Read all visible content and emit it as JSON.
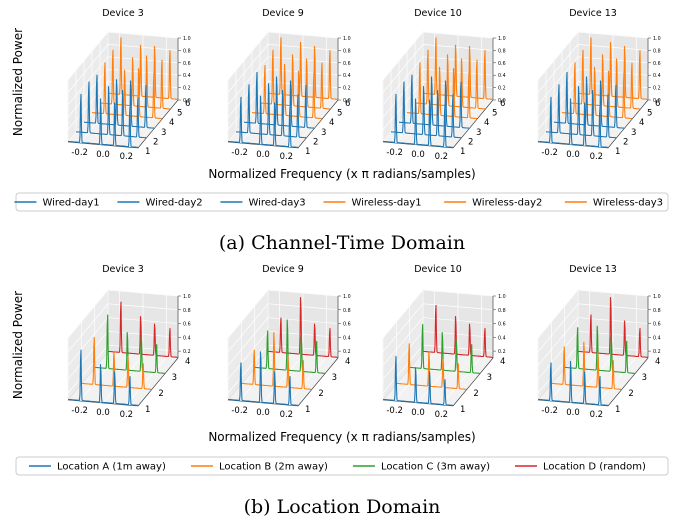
{
  "figure": {
    "panels": [
      {
        "caption": "(a) Channel-Time Domain",
        "ylabel": "Normalized Power",
        "xlabel": "Normalized Frequency (x π radians/samples)",
        "subplot_titles": [
          "Device 3",
          "Device 9",
          "Device 10",
          "Device 13"
        ],
        "x_ticks": [
          "-0.2",
          "0.0",
          "0.2"
        ],
        "depth_ticks": [
          "1",
          "2",
          "3",
          "4",
          "5",
          "6"
        ],
        "z_ticks": [
          "0.0",
          "0.2",
          "0.4",
          "0.6",
          "0.8",
          "1.0"
        ],
        "legend": [
          {
            "label": "Wired-day1",
            "color": "#1f77b4"
          },
          {
            "label": "Wired-day2",
            "color": "#1f77b4"
          },
          {
            "label": "Wired-day3",
            "color": "#1f77b4"
          },
          {
            "label": "Wireless-day1",
            "color": "#ff7f0e"
          },
          {
            "label": "Wireless-day2",
            "color": "#ff7f0e"
          },
          {
            "label": "Wireless-day3",
            "color": "#ff7f0e"
          }
        ]
      },
      {
        "caption": "(b) Location Domain",
        "ylabel": "Normalized Power",
        "xlabel": "Normalized Frequency (x π radians/samples)",
        "subplot_titles": [
          "Device 3",
          "Device 9",
          "Device 10",
          "Device 13"
        ],
        "x_ticks": [
          "-0.2",
          "0.0",
          "0.2"
        ],
        "depth_ticks": [
          "1",
          "2",
          "3",
          "4"
        ],
        "z_ticks": [
          "0.2",
          "0.4",
          "0.6",
          "0.8",
          "1.0"
        ],
        "legend": [
          {
            "label": "Location A (1m away)",
            "color": "#1f77b4"
          },
          {
            "label": "Location B (2m away)",
            "color": "#ff7f0e"
          },
          {
            "label": "Location C (3m away)",
            "color": "#2ca02c"
          },
          {
            "label": "Location D (random)",
            "color": "#d62728"
          }
        ]
      }
    ]
  },
  "chart_data": [
    {
      "type": "line",
      "title": "Device 3",
      "xlabel": "Normalized Frequency (x π radians/samples)",
      "ylabel": "Normalized Power",
      "xlim": [
        -0.3,
        0.3
      ],
      "ylim": [
        1,
        6
      ],
      "zlim": [
        0,
        1
      ],
      "peak_positions": [
        -0.19,
        -0.02,
        0.1,
        0.23
      ],
      "series": [
        {
          "name": "Wired-day1",
          "depth": 1,
          "color": "#1f77b4",
          "peaks": [
            0.85,
            0.8,
            0.75,
            0.7
          ]
        },
        {
          "name": "Wired-day2",
          "depth": 2,
          "color": "#1f77b4",
          "peaks": [
            0.9,
            0.85,
            0.8,
            0.7
          ]
        },
        {
          "name": "Wired-day3",
          "depth": 3,
          "color": "#1f77b4",
          "peaks": [
            0.85,
            0.8,
            0.8,
            0.75
          ]
        },
        {
          "name": "Wireless-day1",
          "depth": 4,
          "color": "#ff7f0e",
          "peaks": [
            0.9,
            0.8,
            0.85,
            0.8
          ]
        },
        {
          "name": "Wireless-day2",
          "depth": 5,
          "color": "#ff7f0e",
          "peaks": [
            0.95,
            0.85,
            0.9,
            0.85
          ]
        },
        {
          "name": "Wireless-day3",
          "depth": 6,
          "color": "#ff7f0e",
          "peaks": [
            1.0,
            0.9,
            0.9,
            0.85
          ]
        }
      ]
    },
    {
      "type": "line",
      "title": "Device 9",
      "xlabel": "Normalized Frequency (x π radians/samples)",
      "ylabel": "Normalized Power",
      "xlim": [
        -0.3,
        0.3
      ],
      "ylim": [
        1,
        6
      ],
      "zlim": [
        0,
        1
      ],
      "peak_positions": [
        -0.19,
        -0.02,
        0.1,
        0.23
      ],
      "series": [
        {
          "name": "Wired-day1",
          "depth": 1,
          "color": "#1f77b4",
          "peaks": [
            0.8,
            0.85,
            0.75,
            0.7
          ]
        },
        {
          "name": "Wired-day2",
          "depth": 2,
          "color": "#1f77b4",
          "peaks": [
            0.85,
            0.9,
            0.8,
            0.75
          ]
        },
        {
          "name": "Wired-day3",
          "depth": 3,
          "color": "#1f77b4",
          "peaks": [
            0.9,
            0.85,
            0.8,
            0.75
          ]
        },
        {
          "name": "Wireless-day1",
          "depth": 4,
          "color": "#ff7f0e",
          "peaks": [
            0.85,
            0.9,
            0.8,
            0.8
          ]
        },
        {
          "name": "Wireless-day2",
          "depth": 5,
          "color": "#ff7f0e",
          "peaks": [
            0.95,
            0.9,
            0.85,
            0.8
          ]
        },
        {
          "name": "Wireless-day3",
          "depth": 6,
          "color": "#ff7f0e",
          "peaks": [
            1.0,
            0.95,
            0.9,
            0.85
          ]
        }
      ]
    },
    {
      "type": "line",
      "title": "Device 10",
      "xlabel": "Normalized Frequency (x π radians/samples)",
      "ylabel": "Normalized Power",
      "xlim": [
        -0.3,
        0.3
      ],
      "ylim": [
        1,
        6
      ],
      "zlim": [
        0,
        1
      ],
      "peak_positions": [
        -0.19,
        -0.02,
        0.1,
        0.23
      ],
      "series": [
        {
          "name": "Wired-day1",
          "depth": 1,
          "color": "#1f77b4",
          "peaks": [
            0.85,
            0.8,
            0.8,
            0.75
          ]
        },
        {
          "name": "Wired-day2",
          "depth": 2,
          "color": "#1f77b4",
          "peaks": [
            0.9,
            0.85,
            0.8,
            0.75
          ]
        },
        {
          "name": "Wired-day3",
          "depth": 3,
          "color": "#1f77b4",
          "peaks": [
            0.85,
            0.85,
            0.8,
            0.8
          ]
        },
        {
          "name": "Wireless-day1",
          "depth": 4,
          "color": "#ff7f0e",
          "peaks": [
            0.9,
            0.85,
            0.85,
            0.8
          ]
        },
        {
          "name": "Wireless-day2",
          "depth": 5,
          "color": "#ff7f0e",
          "peaks": [
            0.95,
            0.9,
            0.85,
            0.85
          ]
        },
        {
          "name": "Wireless-day3",
          "depth": 6,
          "color": "#ff7f0e",
          "peaks": [
            1.0,
            0.9,
            0.9,
            0.85
          ]
        }
      ]
    },
    {
      "type": "line",
      "title": "Device 13",
      "xlabel": "Normalized Frequency (x π radians/samples)",
      "ylabel": "Normalized Power",
      "xlim": [
        -0.3,
        0.3
      ],
      "ylim": [
        1,
        6
      ],
      "zlim": [
        0,
        1
      ],
      "peak_positions": [
        -0.19,
        -0.02,
        0.1,
        0.23
      ],
      "series": [
        {
          "name": "Wired-day1",
          "depth": 1,
          "color": "#1f77b4",
          "peaks": [
            0.8,
            0.8,
            0.75,
            0.7
          ]
        },
        {
          "name": "Wired-day2",
          "depth": 2,
          "color": "#1f77b4",
          "peaks": [
            0.85,
            0.85,
            0.8,
            0.75
          ]
        },
        {
          "name": "Wired-day3",
          "depth": 3,
          "color": "#1f77b4",
          "peaks": [
            0.9,
            0.85,
            0.8,
            0.75
          ]
        },
        {
          "name": "Wireless-day1",
          "depth": 4,
          "color": "#ff7f0e",
          "peaks": [
            0.9,
            0.85,
            0.8,
            0.8
          ]
        },
        {
          "name": "Wireless-day2",
          "depth": 5,
          "color": "#ff7f0e",
          "peaks": [
            0.95,
            0.9,
            0.85,
            0.8
          ]
        },
        {
          "name": "Wireless-day3",
          "depth": 6,
          "color": "#ff7f0e",
          "peaks": [
            1.0,
            0.95,
            0.9,
            0.85
          ]
        }
      ]
    },
    {
      "type": "line",
      "title": "Device 3",
      "xlabel": "Normalized Frequency (x π radians/samples)",
      "ylabel": "Normalized Power",
      "xlim": [
        -0.3,
        0.3
      ],
      "ylim": [
        1,
        4
      ],
      "zlim": [
        0.1,
        1
      ],
      "peak_positions": [
        -0.19,
        -0.02,
        0.1,
        0.23
      ],
      "series": [
        {
          "name": "Location A (1m away)",
          "depth": 1,
          "color": "#1f77b4",
          "peaks": [
            0.9,
            0.7,
            0.6,
            0.55
          ]
        },
        {
          "name": "Location B (2m away)",
          "depth": 2,
          "color": "#ff7f0e",
          "peaks": [
            0.85,
            0.65,
            0.6,
            0.5
          ]
        },
        {
          "name": "Location C (3m away)",
          "depth": 3,
          "color": "#2ca02c",
          "peaks": [
            0.95,
            0.7,
            0.65,
            0.55
          ]
        },
        {
          "name": "Location D (random)",
          "depth": 4,
          "color": "#d62728",
          "peaks": [
            0.9,
            0.7,
            0.6,
            0.55
          ]
        }
      ]
    },
    {
      "type": "line",
      "title": "Device 9",
      "xlabel": "Normalized Frequency (x π radians/samples)",
      "ylabel": "Normalized Power",
      "xlim": [
        -0.3,
        0.3
      ],
      "ylim": [
        1,
        4
      ],
      "zlim": [
        0.1,
        1
      ],
      "peak_positions": [
        -0.19,
        -0.02,
        0.1,
        0.23
      ],
      "series": [
        {
          "name": "Location A (1m away)",
          "depth": 1,
          "color": "#1f77b4",
          "peaks": [
            0.7,
            0.9,
            0.6,
            0.55
          ]
        },
        {
          "name": "Location B (2m away)",
          "depth": 2,
          "color": "#ff7f0e",
          "peaks": [
            0.65,
            0.95,
            0.6,
            0.55
          ]
        },
        {
          "name": "Location C (3m away)",
          "depth": 3,
          "color": "#2ca02c",
          "peaks": [
            0.7,
            0.9,
            0.65,
            0.6
          ]
        },
        {
          "name": "Location D (random)",
          "depth": 4,
          "color": "#d62728",
          "peaks": [
            0.65,
            1.0,
            0.6,
            0.55
          ]
        }
      ]
    },
    {
      "type": "line",
      "title": "Device 10",
      "xlabel": "Normalized Frequency (x π radians/samples)",
      "ylabel": "Normalized Power",
      "xlim": [
        -0.3,
        0.3
      ],
      "ylim": [
        1,
        4
      ],
      "zlim": [
        0.1,
        1
      ],
      "peak_positions": [
        -0.19,
        -0.02,
        0.1,
        0.23
      ],
      "series": [
        {
          "name": "Location A (1m away)",
          "depth": 1,
          "color": "#1f77b4",
          "peaks": [
            0.8,
            0.65,
            0.6,
            0.5
          ]
        },
        {
          "name": "Location B (2m away)",
          "depth": 2,
          "color": "#ff7f0e",
          "peaks": [
            0.75,
            0.65,
            0.55,
            0.5
          ]
        },
        {
          "name": "Location C (3m away)",
          "depth": 3,
          "color": "#2ca02c",
          "peaks": [
            0.8,
            0.7,
            0.6,
            0.55
          ]
        },
        {
          "name": "Location D (random)",
          "depth": 4,
          "color": "#d62728",
          "peaks": [
            0.85,
            0.7,
            0.6,
            0.55
          ]
        }
      ]
    },
    {
      "type": "line",
      "title": "Device 13",
      "xlabel": "Normalized Frequency (x π radians/samples)",
      "ylabel": "Normalized Power",
      "xlim": [
        -0.3,
        0.3
      ],
      "ylim": [
        1,
        4
      ],
      "zlim": [
        0.1,
        1
      ],
      "peak_positions": [
        -0.19,
        -0.02,
        0.1,
        0.23
      ],
      "series": [
        {
          "name": "Location A (1m away)",
          "depth": 1,
          "color": "#1f77b4",
          "peaks": [
            0.7,
            0.75,
            0.6,
            0.55
          ]
        },
        {
          "name": "Location B (2m away)",
          "depth": 2,
          "color": "#ff7f0e",
          "peaks": [
            0.7,
            0.8,
            0.65,
            0.55
          ]
        },
        {
          "name": "Location C (3m away)",
          "depth": 3,
          "color": "#2ca02c",
          "peaks": [
            0.75,
            0.8,
            0.65,
            0.6
          ]
        },
        {
          "name": "Location D (random)",
          "depth": 4,
          "color": "#d62728",
          "peaks": [
            0.7,
            1.0,
            0.65,
            0.55
          ]
        }
      ]
    }
  ]
}
